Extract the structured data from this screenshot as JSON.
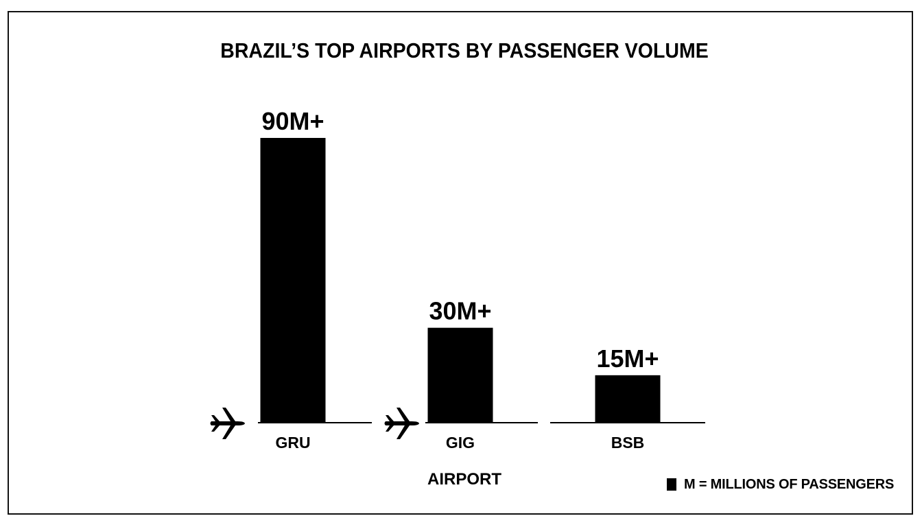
{
  "chart_data": {
    "type": "bar",
    "title": "BRAZIL’S TOP AIRPORTS BY PASSENGER VOLUME",
    "categories": [
      "GRU",
      "GIG",
      "BSB"
    ],
    "values": [
      90,
      30,
      15
    ],
    "value_labels": [
      "90M+",
      "30M+",
      "15M+"
    ],
    "xlabel": "AIRPORT",
    "ylabel": "",
    "unit": "millions of passengers",
    "grid": false,
    "legend": {
      "position": "bottom-right",
      "text": "M = MILLIONS OF PASSENGERS"
    },
    "bar_color": "#000000",
    "category_icons": [
      "airplane-icon",
      "airplane-icon",
      null
    ]
  }
}
